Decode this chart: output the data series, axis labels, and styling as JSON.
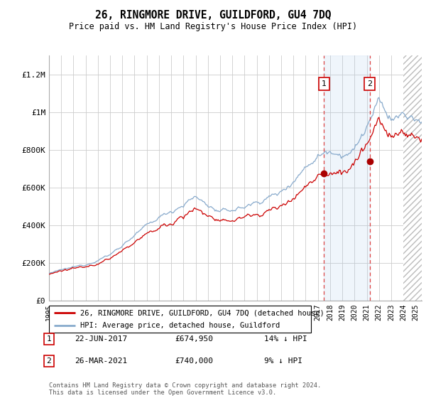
{
  "title": "26, RINGMORE DRIVE, GUILDFORD, GU4 7DQ",
  "subtitle": "Price paid vs. HM Land Registry's House Price Index (HPI)",
  "legend_line1": "26, RINGMORE DRIVE, GUILDFORD, GU4 7DQ (detached house)",
  "legend_line2": "HPI: Average price, detached house, Guildford",
  "sale1_label": "1",
  "sale1_date": "22-JUN-2017",
  "sale1_price": "£674,950",
  "sale1_hpi": "14% ↓ HPI",
  "sale2_label": "2",
  "sale2_date": "26-MAR-2021",
  "sale2_price": "£740,000",
  "sale2_hpi": "9% ↓ HPI",
  "footer": "Contains HM Land Registry data © Crown copyright and database right 2024.\nThis data is licensed under the Open Government Licence v3.0.",
  "property_color": "#cc0000",
  "hpi_color": "#88aacc",
  "sale_dot_color": "#aa0000",
  "vline_color": "#dd4444",
  "vline2_color": "#cc8888",
  "shade_color": "#ddeeff",
  "hatch_color": "#dddddd",
  "sale1_x": 2017.5,
  "sale1_y": 674950,
  "sale2_x": 2021.25,
  "sale2_y": 740000,
  "hpi_at_sale1": 784826,
  "hpi_at_sale2": 813187,
  "ylim": [
    0,
    1300000
  ],
  "xlim_start": 1995.0,
  "xlim_end": 2025.5,
  "hatch_start": 2024.0,
  "shade_start": 2017.5,
  "shade_end": 2021.25
}
